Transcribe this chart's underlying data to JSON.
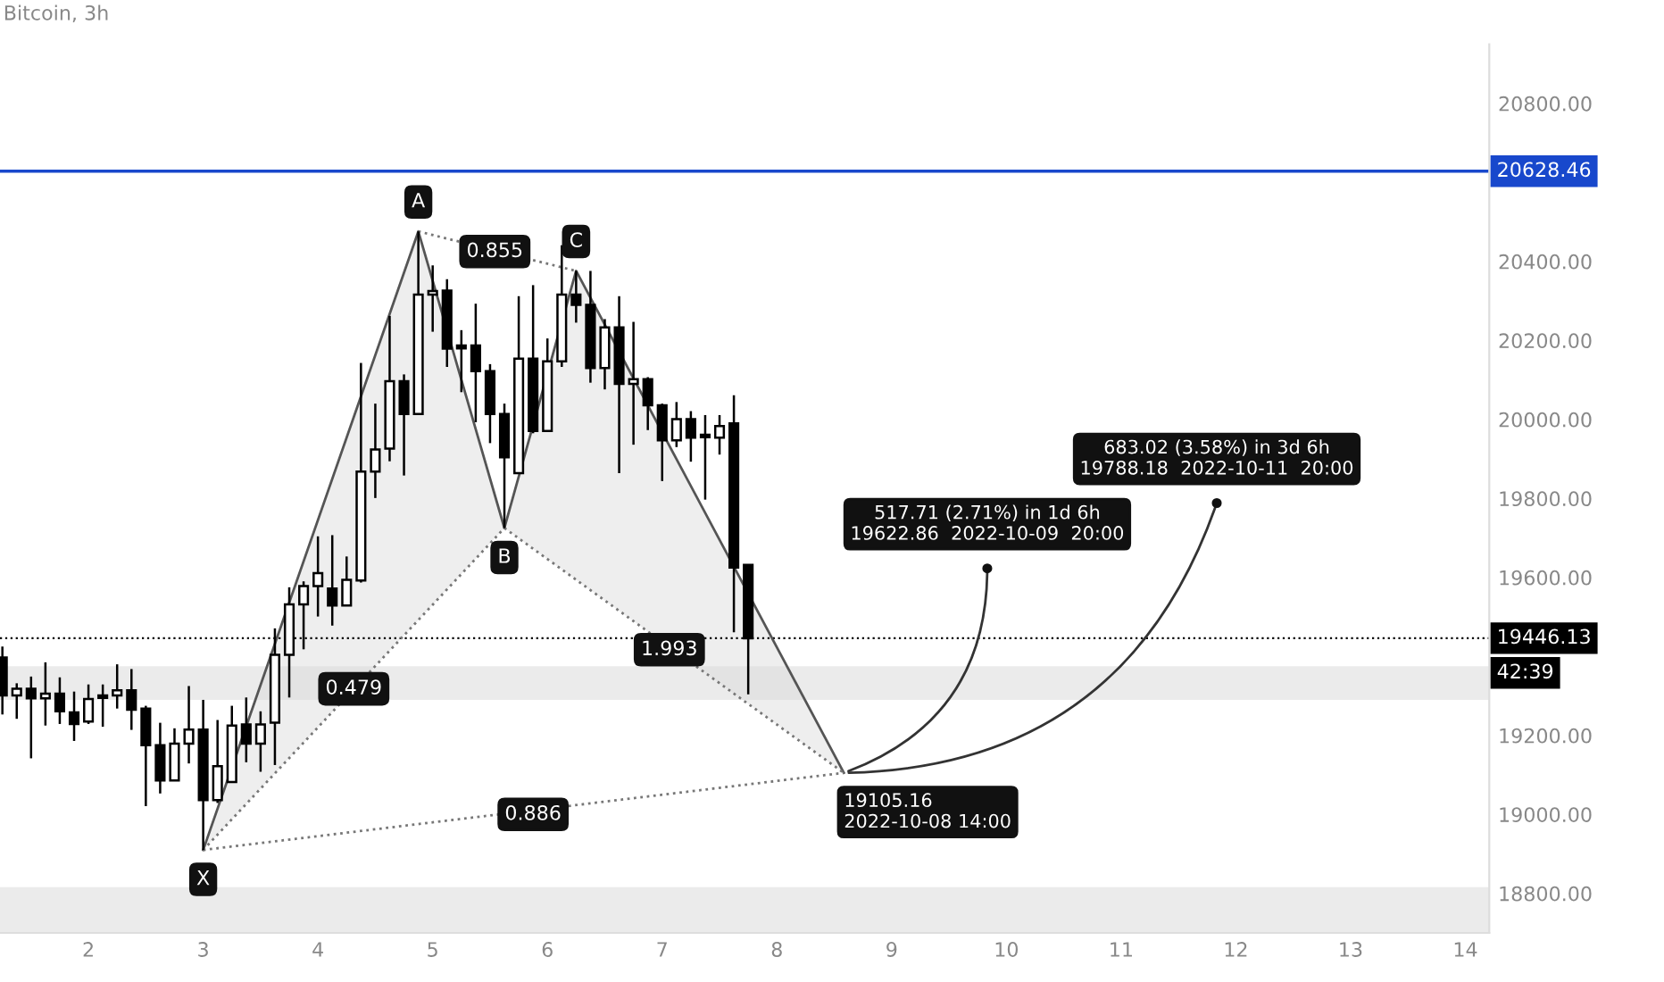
{
  "chart_data": {
    "type": "candlestick",
    "title": "Bitcoin, 3h",
    "color": "#000000",
    "x": [
      "2022-10-01T06:00",
      "2022-10-01T09:00",
      "2022-10-01T12:00",
      "2022-10-01T15:00",
      "2022-10-01T18:00",
      "2022-10-01T21:00",
      "2022-10-02T00:00",
      "2022-10-02T03:00",
      "2022-10-02T06:00",
      "2022-10-02T09:00",
      "2022-10-02T12:00",
      "2022-10-02T15:00",
      "2022-10-02T18:00",
      "2022-10-02T21:00",
      "2022-10-03T00:00",
      "2022-10-03T03:00",
      "2022-10-03T06:00",
      "2022-10-03T09:00",
      "2022-10-03T12:00",
      "2022-10-03T15:00",
      "2022-10-03T18:00",
      "2022-10-03T21:00",
      "2022-10-04T00:00",
      "2022-10-04T03:00",
      "2022-10-04T06:00",
      "2022-10-04T09:00",
      "2022-10-04T12:00",
      "2022-10-04T15:00",
      "2022-10-04T18:00",
      "2022-10-04T21:00",
      "2022-10-05T00:00",
      "2022-10-05T03:00",
      "2022-10-05T06:00",
      "2022-10-05T09:00",
      "2022-10-05T12:00",
      "2022-10-05T15:00",
      "2022-10-05T18:00",
      "2022-10-05T21:00",
      "2022-10-06T00:00",
      "2022-10-06T03:00",
      "2022-10-06T06:00",
      "2022-10-06T09:00",
      "2022-10-06T12:00",
      "2022-10-06T15:00",
      "2022-10-06T18:00",
      "2022-10-06T21:00",
      "2022-10-07T00:00",
      "2022-10-07T03:00",
      "2022-10-07T06:00",
      "2022-10-07T09:00",
      "2022-10-07T12:00",
      "2022-10-07T15:00",
      "2022-10-07T18:00"
    ],
    "ohlc": [
      [
        19397,
        19425,
        19253,
        19301
      ],
      [
        19301,
        19332,
        19242,
        19318
      ],
      [
        19318,
        19349,
        19142,
        19294
      ],
      [
        19294,
        19385,
        19225,
        19306
      ],
      [
        19306,
        19347,
        19229,
        19261
      ],
      [
        19258,
        19311,
        19186,
        19229
      ],
      [
        19235,
        19329,
        19229,
        19292
      ],
      [
        19301,
        19329,
        19222,
        19295
      ],
      [
        19301,
        19380,
        19268,
        19314
      ],
      [
        19314,
        19368,
        19214,
        19265
      ],
      [
        19268,
        19275,
        19021,
        19175
      ],
      [
        19175,
        19232,
        19053,
        19086
      ],
      [
        19086,
        19218,
        19086,
        19179
      ],
      [
        19179,
        19325,
        19129,
        19215
      ],
      [
        19215,
        19290,
        18910,
        19036
      ],
      [
        19036,
        19239,
        19029,
        19122
      ],
      [
        19082,
        19275,
        19082,
        19225
      ],
      [
        19228,
        19296,
        19132,
        19179
      ],
      [
        19179,
        19261,
        19108,
        19228
      ],
      [
        19232,
        19471,
        19125,
        19404
      ],
      [
        19404,
        19575,
        19296,
        19532
      ],
      [
        19532,
        19590,
        19418,
        19578
      ],
      [
        19578,
        19704,
        19501,
        19611
      ],
      [
        19572,
        19707,
        19478,
        19529
      ],
      [
        19529,
        19653,
        19529,
        19594
      ],
      [
        19592,
        20143,
        19587,
        19868
      ],
      [
        19868,
        20040,
        19801,
        19924
      ],
      [
        19926,
        20262,
        19894,
        20097
      ],
      [
        20097,
        20114,
        19858,
        20014
      ],
      [
        20014,
        20476,
        20014,
        20316
      ],
      [
        20316,
        20390,
        20222,
        20325
      ],
      [
        20326,
        20355,
        20133,
        20179
      ],
      [
        20187,
        20226,
        20069,
        20180
      ],
      [
        20187,
        20293,
        19993,
        20122
      ],
      [
        20122,
        20140,
        19940,
        20014
      ],
      [
        20014,
        20040,
        19725,
        19904
      ],
      [
        19864,
        20312,
        19864,
        20154
      ],
      [
        20154,
        20340,
        19965,
        19971
      ],
      [
        19971,
        20205,
        19971,
        20147
      ],
      [
        20147,
        20441,
        20133,
        20316
      ],
      [
        20316,
        20376,
        20245,
        20290
      ],
      [
        20290,
        20376,
        20093,
        20130
      ],
      [
        20130,
        20254,
        20076,
        20233
      ],
      [
        20233,
        20312,
        19864,
        20090
      ],
      [
        20090,
        20247,
        19936,
        20102
      ],
      [
        20102,
        20107,
        19973,
        20036
      ],
      [
        20036,
        20040,
        19844,
        19947
      ],
      [
        19947,
        20044,
        19930,
        20001
      ],
      [
        20001,
        20021,
        19893,
        19954
      ],
      [
        19961,
        20011,
        19797,
        19955
      ],
      [
        19954,
        20011,
        19911,
        19983
      ],
      [
        19990,
        20061,
        19461,
        19625
      ],
      [
        19632,
        19632,
        19304,
        19446.13
      ]
    ],
    "series": [
      {
        "type": "line",
        "color": "#555555",
        "line_style": "solid",
        "x": [
          "2022-10-03T00:00",
          "2022-10-04T21:00",
          "2022-10-05T15:00",
          "2022-10-06T06:00",
          "2022-10-08T14:00"
        ],
        "values": [
          18910,
          20476,
          19725,
          20376,
          19105.16
        ]
      },
      {
        "type": "line",
        "color": "#777777",
        "line_style": "dotted",
        "x": [
          "2022-10-03T00:00",
          "2022-10-05T15:00"
        ],
        "values": [
          18910,
          19725
        ]
      },
      {
        "type": "line",
        "color": "#777777",
        "line_style": "dotted",
        "x": [
          "2022-10-04T21:00",
          "2022-10-06T06:00"
        ],
        "values": [
          20476,
          20376
        ]
      },
      {
        "type": "line",
        "color": "#777777",
        "line_style": "dotted",
        "x": [
          "2022-10-05T15:00",
          "2022-10-08T14:00"
        ],
        "values": [
          19725,
          19105.16
        ]
      },
      {
        "type": "line",
        "color": "#777777",
        "line_style": "dotted",
        "x": [
          "2022-10-03T00:00",
          "2022-10-08T14:00"
        ],
        "values": [
          18910,
          19105.16
        ]
      }
    ],
    "annotations": [
      {
        "text": "X",
        "x": "2022-10-03T00:00",
        "y": 18910
      },
      {
        "text": "A",
        "x": "2022-10-04T21:00",
        "y": 20476
      },
      {
        "text": "B",
        "x": "2022-10-05T15:00",
        "y": 19725
      },
      {
        "text": "C",
        "x": "2022-10-06T06:00",
        "y": 20376
      },
      {
        "text": "0.855",
        "x": "2022-10-05T13:00",
        "y": 20425
      },
      {
        "text": "0.479",
        "x": "2022-10-04T07:30",
        "y": 19318
      },
      {
        "text": "1.993",
        "x": "2022-10-07T01:30",
        "y": 19417
      },
      {
        "text": "0.886",
        "x": "2022-10-05T21:00",
        "y": 19000
      },
      {
        "text": "19105.16\n2022-10-08 14:00",
        "x": "2022-10-08T14:00",
        "y": 19105.16
      },
      {
        "text": "517.71 (2.71%) in 1d 6h\n19622.86  2022-10-09  20:00",
        "x": "2022-10-09T20:00",
        "y": 19622.86
      },
      {
        "text": "683.02 (3.58%) in 3d 6h\n19788.18  2022-10-11  20:00",
        "x": "2022-10-11T20:00",
        "y": 19788.18
      },
      "42:39"
    ],
    "ref_lines": [
      {
        "axis": "y",
        "value": 20628.46,
        "label": "20628.46",
        "color": "#1848cc",
        "line_style": "solid"
      },
      {
        "axis": "y",
        "value": 19446.13,
        "label": "19446.13",
        "color": "#000000",
        "line_style": "dotted"
      }
    ],
    "bands": [
      {
        "axis": "y",
        "from": 19290,
        "to": 19375,
        "color": "#ebebeb"
      },
      {
        "axis": "y",
        "from": 18700,
        "to": 18816,
        "color": "#ebebeb"
      }
    ],
    "xlim": [
      "2022-10-01T05:30",
      "2022-10-14T05:00"
    ],
    "xticks": [
      {
        "value": "2022-10-02",
        "label": "2"
      },
      {
        "value": "2022-10-03",
        "label": "3"
      },
      {
        "value": "2022-10-04",
        "label": "4"
      },
      {
        "value": "2022-10-05",
        "label": "5"
      },
      {
        "value": "2022-10-06",
        "label": "6"
      },
      {
        "value": "2022-10-07",
        "label": "7"
      },
      {
        "value": "2022-10-08",
        "label": "8"
      },
      {
        "value": "2022-10-09",
        "label": "9"
      },
      {
        "value": "2022-10-10",
        "label": "10"
      },
      {
        "value": "2022-10-11",
        "label": "11"
      },
      {
        "value": "2022-10-12",
        "label": "12"
      },
      {
        "value": "2022-10-13",
        "label": "13"
      },
      {
        "value": "2022-10-14",
        "label": "14"
      }
    ],
    "ylim": [
      18700,
      20950
    ],
    "yticks": [
      {
        "value": 18800,
        "label": "18800.00"
      },
      {
        "value": 19000,
        "label": "19000.00"
      },
      {
        "value": 19200,
        "label": "19200.00"
      },
      {
        "value": 19600,
        "label": "19600.00"
      },
      {
        "value": 19800,
        "label": "19800.00"
      },
      {
        "value": 20000,
        "label": "20000.00"
      },
      {
        "value": 20200,
        "label": "20200.00"
      },
      {
        "value": 20400,
        "label": "20400.00"
      },
      {
        "value": 20800,
        "label": "20800.00"
      }
    ],
    "grid": false
  }
}
